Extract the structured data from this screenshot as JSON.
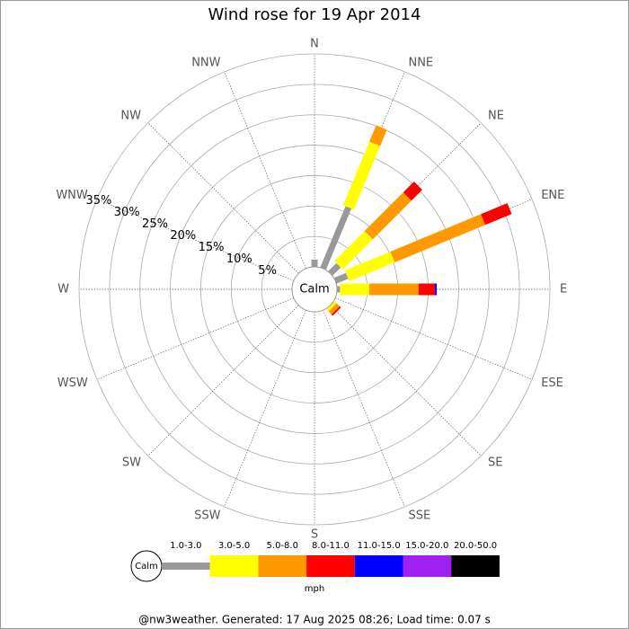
{
  "chart_data": {
    "type": "windrose",
    "title": "Wind rose for 19 Apr 2014",
    "categories": [
      "N",
      "NNE",
      "NE",
      "ENE",
      "E",
      "ESE",
      "SE",
      "SSE",
      "S",
      "SSW",
      "SW",
      "WSW",
      "W",
      "WNW",
      "NW",
      "NNW"
    ],
    "series": [
      {
        "name": "1.0-3.0",
        "color": "#999999",
        "values": [
          1.2,
          10.9,
          1.9,
          2.1,
          0.5,
          0,
          0,
          0,
          0,
          0,
          0,
          0,
          0,
          0,
          0,
          0
        ]
      },
      {
        "name": "3.0-5.0",
        "color": "#ffff00",
        "values": [
          0,
          11.3,
          7,
          8.1,
          4.8,
          0,
          0.5,
          0,
          0,
          0,
          0,
          0,
          0,
          0,
          0,
          0
        ]
      },
      {
        "name": "5.0-8.0",
        "color": "#ff9900",
        "values": [
          0,
          2.9,
          9,
          16.1,
          8.1,
          0,
          0.7,
          0,
          0,
          0,
          0,
          0,
          0,
          0,
          0,
          0
        ]
      },
      {
        "name": "8.0-11.0",
        "color": "#ff0000",
        "values": [
          0,
          0,
          2.5,
          4.7,
          2.7,
          0,
          0.3,
          0,
          0,
          0,
          0,
          0,
          0,
          0,
          0,
          0
        ]
      },
      {
        "name": "11.0-15.0",
        "color": "#0000ff",
        "values": [
          0,
          0,
          0,
          0,
          0.3,
          0,
          0,
          0,
          0,
          0,
          0,
          0,
          0,
          0,
          0,
          0
        ]
      },
      {
        "name": "15.0-20.0",
        "color": "#a020f0",
        "values": [
          0,
          0,
          0,
          0,
          0,
          0,
          0,
          0,
          0,
          0,
          0,
          0,
          0,
          0,
          0,
          0
        ]
      },
      {
        "name": "20.0-50.0",
        "color": "#000000",
        "values": [
          0,
          0,
          0,
          0,
          0,
          0,
          0,
          0,
          0,
          0,
          0,
          0,
          0,
          0,
          0,
          0
        ]
      }
    ],
    "rlim": [
      0,
      35
    ],
    "rticks": [
      {
        "value": 5,
        "label": "5%"
      },
      {
        "value": 10,
        "label": "10%"
      },
      {
        "value": 15,
        "label": "15%"
      },
      {
        "value": 20,
        "label": "20%"
      },
      {
        "value": 25,
        "label": "25%"
      },
      {
        "value": 30,
        "label": "30%"
      },
      {
        "value": 35,
        "label": "35%"
      }
    ],
    "calm_label": "Calm",
    "legend_unit": "mph",
    "footer": "@nw3weather. Generated: 17 Aug 2025 08:26; Load time: 0.07 s"
  }
}
